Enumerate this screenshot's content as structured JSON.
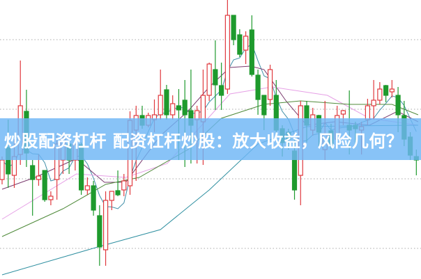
{
  "banner": {
    "title": "炒股配资杠杆 配资杠杆炒股：放大收益，风险几何？"
  },
  "chart_data": {
    "type": "candlestick",
    "title": "",
    "xlabel": "",
    "ylabel": "",
    "ylim": [
      0.56,
      4.57
    ],
    "xlim": [
      0,
      68
    ],
    "grid": {
      "horizontal": true,
      "style": "dotted",
      "levels": [
        1,
        2,
        3,
        4
      ]
    },
    "colors": {
      "up": "#e0393e",
      "down": "#1e9a2d",
      "grid": "#a8a8a8"
    },
    "candles": [
      {
        "o": 1.99,
        "h": 2.32,
        "l": 1.92,
        "c": 2.27
      },
      {
        "o": 2.45,
        "h": 2.85,
        "l": 1.87,
        "c": 2.07
      },
      {
        "o": 2.05,
        "h": 2.57,
        "l": 1.87,
        "c": 2.32
      },
      {
        "o": 2.35,
        "h": 3.7,
        "l": 2.2,
        "c": 3.05
      },
      {
        "o": 2.97,
        "h": 3.28,
        "l": 2.17,
        "c": 2.37
      },
      {
        "o": 2.19,
        "h": 2.27,
        "l": 1.47,
        "c": 1.99
      },
      {
        "o": 1.99,
        "h": 2.35,
        "l": 1.9,
        "c": 2.04
      },
      {
        "o": 2.12,
        "h": 2.12,
        "l": 1.67,
        "c": 1.7
      },
      {
        "o": 1.7,
        "h": 1.82,
        "l": 1.62,
        "c": 1.75
      },
      {
        "o": 1.99,
        "h": 2.62,
        "l": 1.7,
        "c": 2.5
      },
      {
        "o": 2.27,
        "h": 2.67,
        "l": 2.07,
        "c": 2.57
      },
      {
        "o": 2.5,
        "h": 2.52,
        "l": 2.07,
        "c": 2.27
      },
      {
        "o": 2.27,
        "h": 2.57,
        "l": 2.12,
        "c": 2.49
      },
      {
        "o": 2.49,
        "h": 2.52,
        "l": 1.77,
        "c": 1.84
      },
      {
        "o": 1.84,
        "h": 2.02,
        "l": 1.77,
        "c": 1.9
      },
      {
        "o": 1.9,
        "h": 1.97,
        "l": 1.47,
        "c": 1.55
      },
      {
        "o": 1.47,
        "h": 1.62,
        "l": 0.75,
        "c": 1.02
      },
      {
        "o": 0.98,
        "h": 1.82,
        "l": 0.75,
        "c": 1.69
      },
      {
        "o": 1.69,
        "h": 1.82,
        "l": 1.55,
        "c": 1.82
      },
      {
        "o": 1.83,
        "h": 2.12,
        "l": 1.75,
        "c": 1.77
      },
      {
        "o": 1.84,
        "h": 2.07,
        "l": 1.75,
        "c": 1.97
      },
      {
        "o": 1.9,
        "h": 2.97,
        "l": 1.77,
        "c": 2.84
      },
      {
        "o": 2.7,
        "h": 3.05,
        "l": 1.97,
        "c": 2.91
      },
      {
        "o": 2.91,
        "h": 3.05,
        "l": 2.72,
        "c": 2.77
      },
      {
        "o": 2.77,
        "h": 2.95,
        "l": 2.74,
        "c": 2.91
      },
      {
        "o": 2.85,
        "h": 3.14,
        "l": 2.67,
        "c": 2.92
      },
      {
        "o": 2.92,
        "h": 3.57,
        "l": 2.85,
        "c": 3.2
      },
      {
        "o": 3.28,
        "h": 3.35,
        "l": 2.85,
        "c": 2.92
      },
      {
        "o": 2.92,
        "h": 3.2,
        "l": 2.85,
        "c": 3.08
      },
      {
        "o": 3.05,
        "h": 3.29,
        "l": 2.27,
        "c": 2.99
      },
      {
        "o": 3.13,
        "h": 3.42,
        "l": 2.17,
        "c": 2.92
      },
      {
        "o": 2.98,
        "h": 3.57,
        "l": 2.22,
        "c": 2.77
      },
      {
        "o": 2.85,
        "h": 3.05,
        "l": 2.22,
        "c": 2.98
      },
      {
        "o": 2.82,
        "h": 3.57,
        "l": 2.2,
        "c": 3.2
      },
      {
        "o": 3.2,
        "h": 3.67,
        "l": 3.12,
        "c": 3.65
      },
      {
        "o": 3.57,
        "h": 3.99,
        "l": 2.99,
        "c": 3.35
      },
      {
        "o": 3.34,
        "h": 3.67,
        "l": 2.99,
        "c": 3.2
      },
      {
        "o": 3.29,
        "h": 4.57,
        "l": 3.22,
        "c": 4.35
      },
      {
        "o": 4.35,
        "h": 4.35,
        "l": 3.92,
        "c": 4.0
      },
      {
        "o": 4.07,
        "h": 4.15,
        "l": 3.75,
        "c": 3.79
      },
      {
        "o": 3.85,
        "h": 4.12,
        "l": 3.65,
        "c": 4.05
      },
      {
        "o": 4.14,
        "h": 4.35,
        "l": 3.47,
        "c": 3.5
      },
      {
        "o": 3.49,
        "h": 3.57,
        "l": 2.92,
        "c": 3.14
      },
      {
        "o": 3.2,
        "h": 3.2,
        "l": 2.7,
        "c": 2.92
      },
      {
        "o": 3.14,
        "h": 3.64,
        "l": 3.05,
        "c": 3.57
      },
      {
        "o": 3.2,
        "h": 3.42,
        "l": 2.62,
        "c": 2.7
      },
      {
        "o": 2.72,
        "h": 2.77,
        "l": 2.32,
        "c": 2.52
      },
      {
        "o": 2.67,
        "h": 2.72,
        "l": 2.42,
        "c": 2.57
      },
      {
        "o": 2.4,
        "h": 2.57,
        "l": 1.7,
        "c": 1.84
      },
      {
        "o": 2.05,
        "h": 3.12,
        "l": 1.62,
        "c": 3.05
      },
      {
        "o": 3.05,
        "h": 3.12,
        "l": 2.52,
        "c": 2.77
      },
      {
        "o": 2.7,
        "h": 3.02,
        "l": 2.62,
        "c": 2.92
      },
      {
        "o": 2.91,
        "h": 2.92,
        "l": 2.47,
        "c": 2.67
      },
      {
        "o": 2.42,
        "h": 3.12,
        "l": 2.27,
        "c": 2.64
      },
      {
        "o": 2.69,
        "h": 2.79,
        "l": 2.42,
        "c": 2.49
      },
      {
        "o": 2.57,
        "h": 3.05,
        "l": 2.47,
        "c": 2.91
      },
      {
        "o": 2.93,
        "h": 2.99,
        "l": 2.77,
        "c": 2.98
      },
      {
        "o": 2.77,
        "h": 3.27,
        "l": 2.35,
        "c": 2.7
      },
      {
        "o": 2.77,
        "h": 2.82,
        "l": 2.47,
        "c": 2.72
      },
      {
        "o": 2.7,
        "h": 2.82,
        "l": 2.35,
        "c": 2.75
      },
      {
        "o": 2.85,
        "h": 3.15,
        "l": 2.77,
        "c": 3.05
      },
      {
        "o": 3.05,
        "h": 3.42,
        "l": 2.85,
        "c": 3.13
      },
      {
        "o": 3.13,
        "h": 3.39,
        "l": 3.07,
        "c": 3.29
      },
      {
        "o": 3.34,
        "h": 3.35,
        "l": 3.1,
        "c": 3.2
      },
      {
        "o": 3.25,
        "h": 3.42,
        "l": 3.17,
        "c": 3.29
      },
      {
        "o": 3.2,
        "h": 3.32,
        "l": 2.67,
        "c": 2.92
      },
      {
        "o": 2.91,
        "h": 3.12,
        "l": 2.47,
        "c": 2.57
      },
      {
        "o": 2.6,
        "h": 2.67,
        "l": 2.27,
        "c": 2.34
      },
      {
        "o": 2.32,
        "h": 2.42,
        "l": 2.05,
        "c": 2.27
      }
    ],
    "moving_averages": [
      {
        "color": "#3f8fa8",
        "fast_ma_period": 5
      },
      {
        "color": "#7a3a6e",
        "points": [
          [
            0,
            1.85
          ],
          [
            5.4,
            2.02
          ],
          [
            12.2,
            2.29
          ],
          [
            16.8,
            1.95
          ],
          [
            20.3,
            1.95
          ],
          [
            26,
            2.62
          ],
          [
            30.5,
            2.97
          ],
          [
            34,
            3.32
          ],
          [
            37.4,
            3.6
          ],
          [
            40.8,
            3.62
          ],
          [
            43,
            3.57
          ],
          [
            46.6,
            3.12
          ],
          [
            50,
            2.77
          ],
          [
            54.6,
            2.82
          ],
          [
            60.3,
            2.77
          ],
          [
            64.9,
            2.97
          ],
          [
            68.3,
            2.82
          ]
        ]
      },
      {
        "color": "#e6a0e6",
        "points": [
          [
            0,
            1.42
          ],
          [
            12.2,
            2.07
          ],
          [
            20.3,
            2.02
          ],
          [
            27.1,
            2.22
          ],
          [
            37.4,
            3.22
          ],
          [
            44.3,
            3.32
          ],
          [
            53.4,
            3.2
          ],
          [
            60.3,
            2.87
          ],
          [
            68.3,
            2.77
          ]
        ]
      },
      {
        "color": "#4f8a3a",
        "points": [
          [
            0,
            1.17
          ],
          [
            10,
            1.57
          ],
          [
            17,
            1.92
          ],
          [
            22.5,
            2.02
          ],
          [
            30.5,
            2.42
          ],
          [
            36,
            2.87
          ],
          [
            43,
            3.07
          ],
          [
            49,
            3.12
          ],
          [
            57,
            3.07
          ],
          [
            64,
            3.07
          ],
          [
            68.3,
            2.92
          ]
        ]
      },
      {
        "color": "#2e8fa0",
        "points": [
          [
            0,
            0.62
          ],
          [
            15.7,
            1.02
          ],
          [
            26,
            1.27
          ],
          [
            34,
            1.84
          ],
          [
            42,
            2.5
          ],
          [
            50,
            2.75
          ],
          [
            57,
            2.76
          ],
          [
            68.3,
            2.77
          ]
        ]
      }
    ]
  }
}
